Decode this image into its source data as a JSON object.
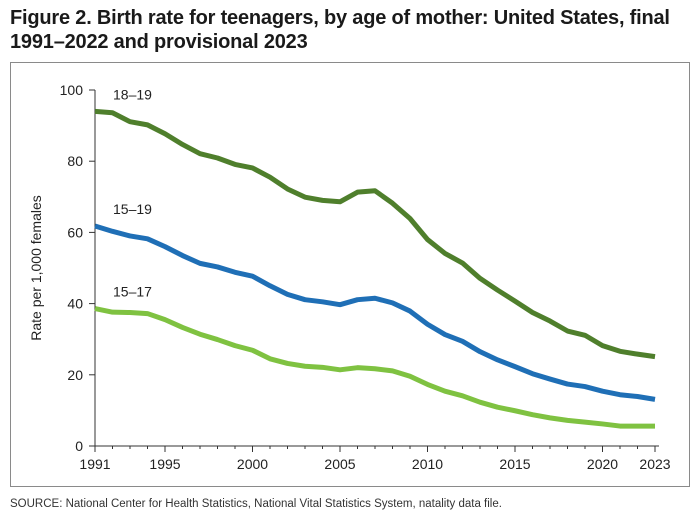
{
  "figure": {
    "title": "Figure 2. Birth rate for teenagers, by age of mother: United States, final 1991–2022 and provisional 2023",
    "source": "SOURCE: National Center for Health Statistics, National Vital Statistics System, natality data file."
  },
  "chart_data": {
    "type": "line",
    "title": "Figure 2. Birth rate for teenagers, by age of mother: United States, final 1991–2022 and provisional 2023",
    "xlabel": "",
    "ylabel": "Rate per 1,000 females",
    "xlim": [
      1991,
      2023
    ],
    "ylim": [
      0,
      100
    ],
    "yticks": [
      0,
      20,
      40,
      60,
      80,
      100
    ],
    "xticks": [
      1991,
      1995,
      2000,
      2005,
      2010,
      2015,
      2020,
      2023
    ],
    "grid": false,
    "legend": "inline labels",
    "x": [
      1991,
      1992,
      1993,
      1994,
      1995,
      1996,
      1997,
      1998,
      1999,
      2000,
      2001,
      2002,
      2003,
      2004,
      2005,
      2006,
      2007,
      2008,
      2009,
      2010,
      2011,
      2012,
      2013,
      2014,
      2015,
      2016,
      2017,
      2018,
      2019,
      2020,
      2021,
      2022,
      2023
    ],
    "series": [
      {
        "name": "18–19",
        "color": "#4f7f2c",
        "values": [
          94.0,
          93.6,
          91.1,
          90.2,
          87.7,
          84.7,
          82.1,
          80.9,
          79.1,
          78.1,
          75.5,
          72.2,
          69.9,
          69.0,
          68.6,
          71.3,
          71.7,
          68.2,
          63.9,
          58.0,
          54.1,
          51.4,
          47.1,
          43.8,
          40.7,
          37.5,
          35.1,
          32.3,
          31.1,
          28.2,
          26.6,
          25.8,
          25.1
        ]
      },
      {
        "name": "15–19",
        "color": "#1f6fb6",
        "values": [
          61.8,
          60.3,
          59.0,
          58.2,
          56.0,
          53.5,
          51.3,
          50.3,
          48.8,
          47.7,
          45.0,
          42.6,
          41.1,
          40.5,
          39.7,
          41.1,
          41.5,
          40.2,
          37.9,
          34.2,
          31.3,
          29.4,
          26.5,
          24.2,
          22.3,
          20.3,
          18.8,
          17.4,
          16.7,
          15.4,
          14.4,
          13.9,
          13.1
        ]
      },
      {
        "name": "15–17",
        "color": "#7fc241",
        "values": [
          38.6,
          37.6,
          37.5,
          37.2,
          35.5,
          33.3,
          31.4,
          29.9,
          28.2,
          26.9,
          24.5,
          23.2,
          22.4,
          22.1,
          21.4,
          22.0,
          21.7,
          21.1,
          19.6,
          17.3,
          15.4,
          14.1,
          12.3,
          10.9,
          9.9,
          8.8,
          7.9,
          7.2,
          6.7,
          6.2,
          5.6,
          5.6,
          5.6
        ]
      }
    ]
  }
}
